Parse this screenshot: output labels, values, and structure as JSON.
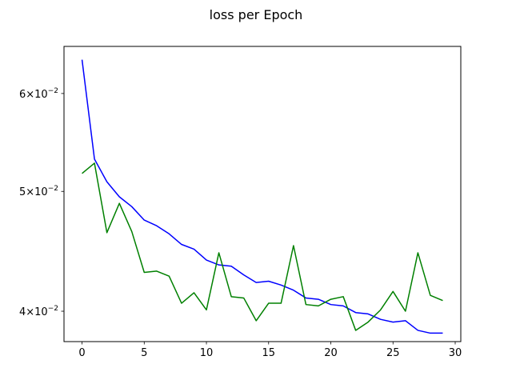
{
  "chart_data": {
    "type": "line",
    "title": "loss per Epoch",
    "xlabel": "",
    "ylabel": "",
    "yscale": "log",
    "xlim": [
      -1.45,
      30.45
    ],
    "ylim": [
      0.0378,
      0.0655
    ],
    "grid": false,
    "x_ticks": [
      0,
      5,
      10,
      15,
      20,
      25,
      30
    ],
    "x_tick_labels": [
      "0",
      "5",
      "10",
      "15",
      "20",
      "25",
      "30"
    ],
    "y_ticks": [
      0.04,
      0.05,
      0.06
    ],
    "y_tick_labels": [
      {
        "mantissa": "4",
        "exp": "−2"
      },
      {
        "mantissa": "5",
        "exp": "−2"
      },
      {
        "mantissa": "6",
        "exp": "−2"
      }
    ],
    "x": [
      0,
      1,
      2,
      3,
      4,
      5,
      6,
      7,
      8,
      9,
      10,
      11,
      12,
      13,
      14,
      15,
      16,
      17,
      18,
      19,
      20,
      21,
      22,
      23,
      24,
      25,
      26,
      27,
      28,
      29
    ],
    "series": [
      {
        "color": "#0000ff",
        "values": [
          0.0639,
          0.0531,
          0.0509,
          0.0495,
          0.0486,
          0.0474,
          0.0469,
          0.0462,
          0.0453,
          0.0449,
          0.044,
          0.0436,
          0.0435,
          0.0428,
          0.0422,
          0.0423,
          0.042,
          0.0416,
          0.041,
          0.0409,
          0.0405,
          0.0404,
          0.0399,
          0.0398,
          0.0394,
          0.0392,
          0.0393,
          0.0386,
          0.0384,
          0.0384
        ]
      },
      {
        "color": "#008000",
        "values": [
          0.0517,
          0.0527,
          0.0463,
          0.0489,
          0.0464,
          0.043,
          0.0431,
          0.0427,
          0.0406,
          0.0414,
          0.0401,
          0.0446,
          0.0411,
          0.041,
          0.0393,
          0.0406,
          0.0406,
          0.0452,
          0.0405,
          0.0404,
          0.0409,
          0.0411,
          0.0386,
          0.0392,
          0.0401,
          0.0415,
          0.04,
          0.0446,
          0.0412,
          0.0408
        ]
      }
    ]
  }
}
